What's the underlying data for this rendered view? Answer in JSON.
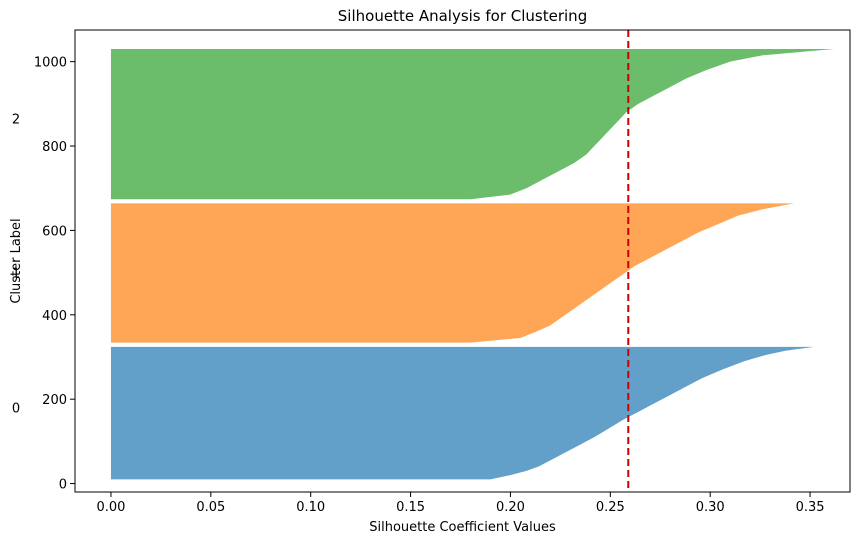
{
  "chart_data": {
    "type": "area",
    "title": "Silhouette Analysis for Clustering",
    "xlabel": "Silhouette Coefficient Values",
    "ylabel": "Cluster Label",
    "xlim": [
      -0.018,
      0.37
    ],
    "ylim": [
      -20,
      1075
    ],
    "xticks": [
      0.0,
      0.05,
      0.1,
      0.15,
      0.2,
      0.25,
      0.3,
      0.35
    ],
    "xtick_labels": [
      "0.00",
      "0.05",
      "0.10",
      "0.15",
      "0.20",
      "0.25",
      "0.30",
      "0.35"
    ],
    "yticks": [
      0,
      200,
      400,
      600,
      800,
      1000
    ],
    "ytick_labels": [
      "0",
      "200",
      "400",
      "600",
      "800",
      "1000"
    ],
    "grid": false,
    "average_silhouette": 0.259,
    "average_line_color": "#cc0000",
    "series": [
      {
        "cluster_label": "0",
        "label_y": 180,
        "color": "#1f77b4",
        "opacity": 0.7,
        "y_range": [
          10,
          324
        ],
        "profile": [
          [
            10,
            0.19
          ],
          [
            20,
            0.2
          ],
          [
            30,
            0.208
          ],
          [
            40,
            0.214
          ],
          [
            55,
            0.22
          ],
          [
            70,
            0.226
          ],
          [
            90,
            0.234
          ],
          [
            110,
            0.242
          ],
          [
            130,
            0.249
          ],
          [
            150,
            0.256
          ],
          [
            170,
            0.264
          ],
          [
            190,
            0.272
          ],
          [
            210,
            0.28
          ],
          [
            230,
            0.288
          ],
          [
            250,
            0.296
          ],
          [
            270,
            0.306
          ],
          [
            290,
            0.317
          ],
          [
            305,
            0.328
          ],
          [
            315,
            0.338
          ],
          [
            324,
            0.352
          ]
        ]
      },
      {
        "cluster_label": "1",
        "label_y": 500,
        "color": "#ff7f0e",
        "opacity": 0.7,
        "y_range": [
          334,
          664
        ],
        "profile": [
          [
            334,
            0.18
          ],
          [
            345,
            0.205
          ],
          [
            360,
            0.213
          ],
          [
            375,
            0.22
          ],
          [
            395,
            0.226
          ],
          [
            415,
            0.232
          ],
          [
            435,
            0.238
          ],
          [
            455,
            0.244
          ],
          [
            475,
            0.25
          ],
          [
            495,
            0.256
          ],
          [
            515,
            0.262
          ],
          [
            535,
            0.27
          ],
          [
            555,
            0.278
          ],
          [
            575,
            0.286
          ],
          [
            595,
            0.294
          ],
          [
            615,
            0.304
          ],
          [
            635,
            0.314
          ],
          [
            650,
            0.326
          ],
          [
            658,
            0.335
          ],
          [
            664,
            0.342
          ]
        ]
      },
      {
        "cluster_label": "2",
        "label_y": 865,
        "color": "#2ca02c",
        "opacity": 0.7,
        "y_range": [
          674,
          1030
        ],
        "profile": [
          [
            674,
            0.18
          ],
          [
            685,
            0.2
          ],
          [
            700,
            0.208
          ],
          [
            720,
            0.216
          ],
          [
            740,
            0.224
          ],
          [
            760,
            0.232
          ],
          [
            780,
            0.238
          ],
          [
            800,
            0.242
          ],
          [
            820,
            0.246
          ],
          [
            840,
            0.25
          ],
          [
            860,
            0.254
          ],
          [
            880,
            0.258
          ],
          [
            900,
            0.264
          ],
          [
            920,
            0.272
          ],
          [
            940,
            0.28
          ],
          [
            960,
            0.288
          ],
          [
            980,
            0.298
          ],
          [
            1000,
            0.31
          ],
          [
            1015,
            0.326
          ],
          [
            1030,
            0.362
          ]
        ]
      }
    ]
  }
}
